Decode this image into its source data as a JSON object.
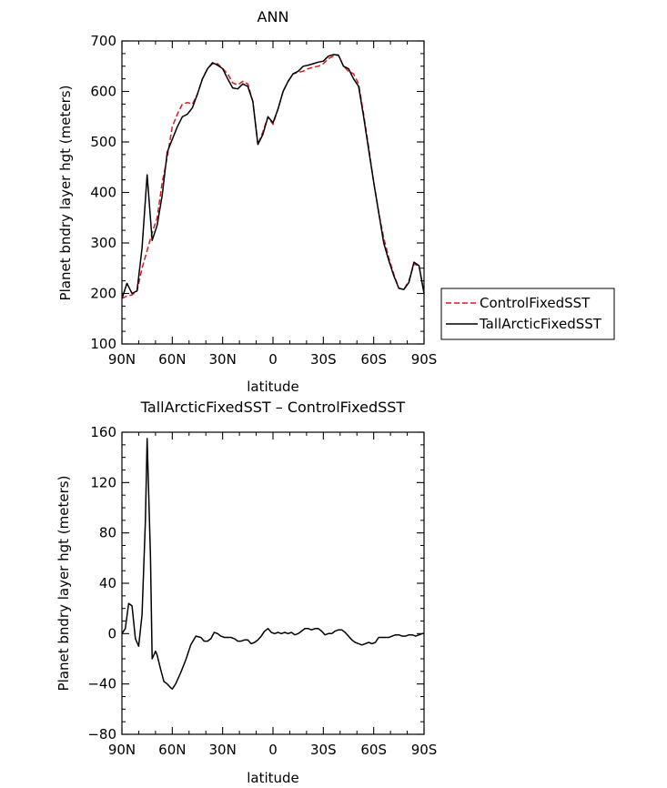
{
  "chart_data": [
    {
      "type": "line",
      "title": "ANN",
      "xlabel": "latitude",
      "ylabel": "Planet bndry layer hgt (meters)",
      "xlim": [
        90,
        -90
      ],
      "ylim": [
        100,
        700
      ],
      "xticks": [
        90,
        60,
        30,
        0,
        -30,
        -60,
        -90
      ],
      "xtick_labels": [
        "90N",
        "60N",
        "30N",
        "0",
        "30S",
        "60S",
        "90S"
      ],
      "yticks": [
        100,
        200,
        300,
        400,
        500,
        600,
        700
      ],
      "ytick_labels": [
        "100",
        "200",
        "300",
        "400",
        "500",
        "600",
        "700"
      ],
      "legend_position": "right",
      "series": [
        {
          "name": "ControlFixedSST",
          "color": "#e8141b",
          "dash": "dashed",
          "x": [
            90,
            87,
            84,
            81,
            78,
            75,
            72,
            69,
            66,
            63,
            60,
            57,
            54,
            51,
            48,
            45,
            42,
            39,
            36,
            33,
            30,
            27,
            24,
            21,
            18,
            15,
            12,
            9,
            6,
            3,
            0,
            -3,
            -6,
            -9,
            -12,
            -15,
            -18,
            -21,
            -24,
            -27,
            -30,
            -33,
            -36,
            -39,
            -42,
            -45,
            -48,
            -51,
            -54,
            -57,
            -60,
            -63,
            -66,
            -69,
            -72,
            -75,
            -78,
            -81,
            -84,
            -87,
            -90
          ],
          "y": [
            190,
            195,
            197,
            205,
            250,
            285,
            320,
            350,
            420,
            470,
            530,
            555,
            575,
            578,
            575,
            595,
            625,
            645,
            655,
            655,
            645,
            635,
            617,
            613,
            620,
            615,
            580,
            495,
            520,
            550,
            535,
            565,
            600,
            620,
            635,
            638,
            640,
            645,
            648,
            650,
            655,
            665,
            670,
            672,
            650,
            640,
            635,
            615,
            555,
            490,
            420,
            360,
            310,
            270,
            238,
            210,
            208,
            225,
            258,
            255,
            200
          ]
        },
        {
          "name": "TallArcticFixedSST",
          "color": "#000000",
          "dash": "solid",
          "x": [
            90,
            87,
            84,
            81,
            78,
            75,
            72,
            69,
            66,
            63,
            60,
            57,
            54,
            51,
            48,
            45,
            42,
            39,
            36,
            33,
            30,
            27,
            24,
            21,
            18,
            15,
            12,
            9,
            6,
            3,
            0,
            -3,
            -6,
            -9,
            -12,
            -15,
            -18,
            -21,
            -24,
            -27,
            -30,
            -33,
            -36,
            -39,
            -42,
            -45,
            -48,
            -51,
            -54,
            -57,
            -60,
            -63,
            -66,
            -69,
            -72,
            -75,
            -78,
            -81,
            -84,
            -87,
            -90
          ],
          "y": [
            190,
            220,
            200,
            205,
            290,
            435,
            305,
            335,
            395,
            480,
            505,
            530,
            550,
            555,
            568,
            595,
            625,
            645,
            657,
            652,
            645,
            625,
            607,
            605,
            615,
            610,
            580,
            495,
            515,
            550,
            538,
            565,
            600,
            620,
            635,
            640,
            650,
            652,
            655,
            658,
            660,
            670,
            673,
            672,
            650,
            645,
            625,
            610,
            550,
            485,
            420,
            360,
            300,
            265,
            235,
            210,
            208,
            222,
            262,
            255,
            200
          ]
        }
      ]
    },
    {
      "type": "line",
      "title": "TallArcticFixedSST – ControlFixedSST",
      "xlabel": "latitude",
      "ylabel": "Planet bndry layer hgt (meters)",
      "xlim": [
        90,
        -90
      ],
      "ylim": [
        -80,
        160
      ],
      "xticks": [
        90,
        60,
        30,
        0,
        -30,
        -60,
        -90
      ],
      "xtick_labels": [
        "90N",
        "60N",
        "30N",
        "0",
        "30S",
        "60S",
        "90S"
      ],
      "yticks": [
        -80,
        -40,
        0,
        40,
        80,
        120,
        160
      ],
      "ytick_labels": [
        "−80",
        "−40",
        "0",
        "40",
        "80",
        "120",
        "160"
      ],
      "series": [
        {
          "color": "#000000",
          "dash": "solid",
          "x": [
            90,
            88,
            86,
            84,
            82,
            80,
            78,
            76,
            75,
            73,
            72,
            70,
            69,
            67,
            65,
            63,
            61,
            60,
            58,
            55,
            52,
            49,
            46,
            43,
            41,
            39,
            37,
            35,
            33,
            31,
            29,
            27,
            25,
            23,
            21,
            19,
            17,
            15,
            13,
            11,
            9,
            7,
            5,
            3,
            1,
            -1,
            -3,
            -5,
            -7,
            -9,
            -11,
            -13,
            -15,
            -17,
            -19,
            -21,
            -23,
            -25,
            -27,
            -29,
            -31,
            -33,
            -35,
            -37,
            -39,
            -41,
            -43,
            -45,
            -47,
            -49,
            -51,
            -53,
            -55,
            -57,
            -59,
            -61,
            -63,
            -65,
            -67,
            -69,
            -71,
            -73,
            -75,
            -77,
            -79,
            -81,
            -83,
            -85,
            -87,
            -89,
            -90
          ],
          "y": [
            0,
            4,
            24,
            22,
            -4,
            -10,
            15,
            90,
            155,
            60,
            -20,
            -14,
            -17,
            -28,
            -38,
            -40,
            -43,
            -44,
            -40,
            -31,
            -21,
            -9,
            -2,
            -3,
            -6,
            -6,
            -4,
            1,
            0,
            -2,
            -3,
            -3,
            -3,
            -4,
            -6,
            -6,
            -5,
            -5,
            -8,
            -7,
            -5,
            -2,
            2,
            4,
            1,
            0,
            1,
            0,
            1,
            0,
            1,
            -1,
            0,
            2,
            4,
            4,
            3,
            4,
            4,
            2,
            -1,
            0,
            0,
            2,
            3,
            3,
            1,
            -2,
            -5,
            -7,
            -8,
            -9,
            -8,
            -7,
            -8,
            -7,
            -3,
            -3,
            -3,
            -3,
            -2,
            -1,
            -1,
            -2,
            -2,
            -1,
            -1,
            -2,
            -1,
            0,
            0
          ]
        }
      ]
    }
  ]
}
